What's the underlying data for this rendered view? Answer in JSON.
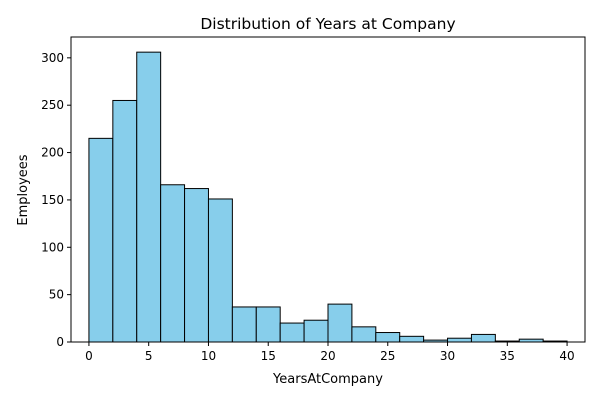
{
  "chart_data": {
    "type": "bar",
    "title": "Distribution of Years at Company",
    "xlabel": "YearsAtCompany",
    "ylabel": "Employees",
    "bin_edges": [
      0,
      2,
      4,
      6,
      8,
      10,
      12,
      14,
      16,
      18,
      20,
      22,
      24,
      26,
      28,
      30,
      32,
      34,
      36,
      38,
      40
    ],
    "values": [
      215,
      255,
      306,
      166,
      162,
      151,
      37,
      37,
      20,
      23,
      40,
      16,
      10,
      6,
      2,
      4,
      8,
      1,
      3,
      1
    ],
    "xlim": [
      -1.5,
      41.5
    ],
    "ylim": [
      0,
      322
    ],
    "x_ticks": [
      0,
      5,
      10,
      15,
      20,
      25,
      30,
      35,
      40
    ],
    "y_ticks": [
      0,
      50,
      100,
      150,
      200,
      250,
      300
    ],
    "grid": false,
    "bar_color": "#87ceeb",
    "edge_color": "#000000"
  }
}
